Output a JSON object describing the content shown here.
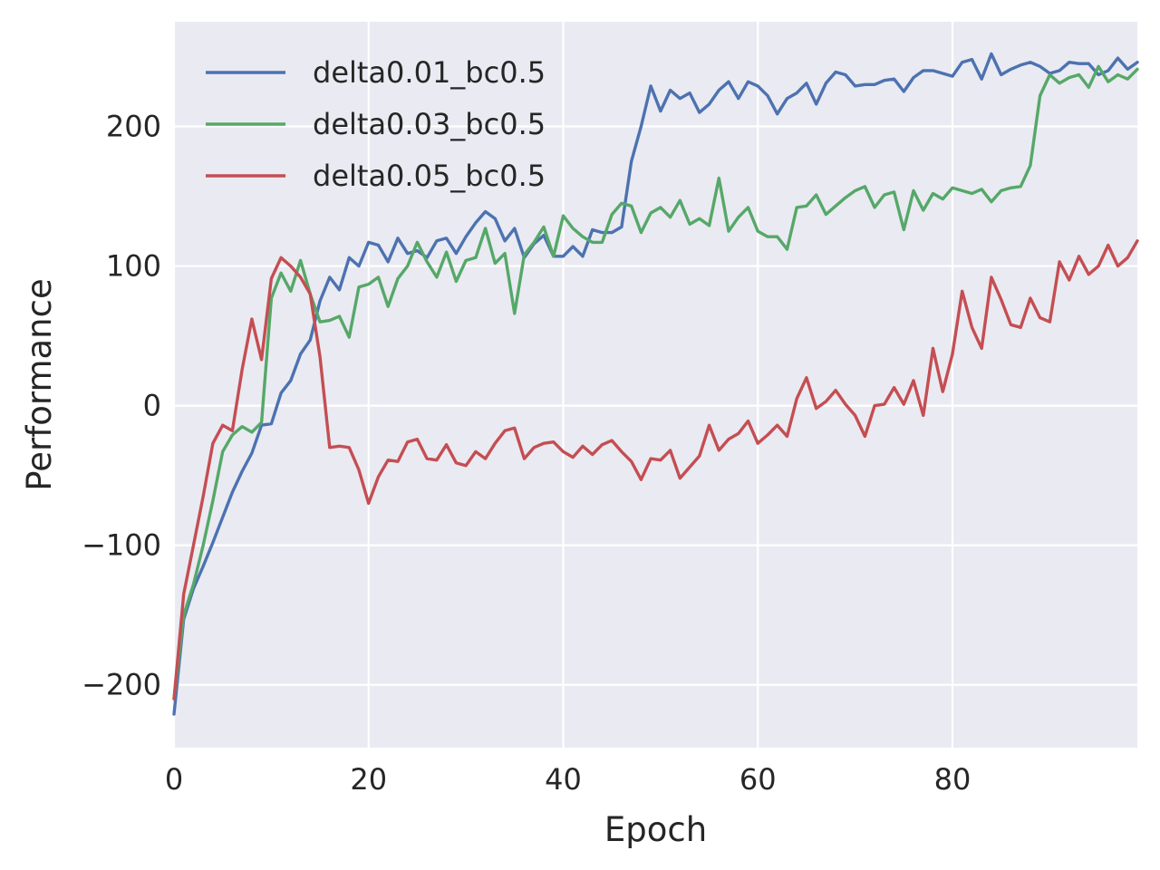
{
  "chart_data": {
    "type": "line",
    "title": "",
    "xlabel": "Epoch",
    "ylabel": "Performance",
    "xlim": [
      0,
      99
    ],
    "ylim": [
      -245,
      275
    ],
    "xticks": [
      0,
      20,
      40,
      60,
      80
    ],
    "xtick_labels": [
      "0",
      "20",
      "40",
      "60",
      "80"
    ],
    "yticks": [
      -200,
      -100,
      0,
      100,
      200
    ],
    "ytick_labels": [
      "−200",
      "−100",
      "0",
      "100",
      "200"
    ],
    "grid": true,
    "legend_position": "top-left",
    "background": "#eaeaf2",
    "x": [
      0,
      1,
      2,
      3,
      4,
      5,
      6,
      7,
      8,
      9,
      10,
      11,
      12,
      13,
      14,
      15,
      16,
      17,
      18,
      19,
      20,
      21,
      22,
      23,
      24,
      25,
      26,
      27,
      28,
      29,
      30,
      31,
      32,
      33,
      34,
      35,
      36,
      37,
      38,
      39,
      40,
      41,
      42,
      43,
      44,
      45,
      46,
      47,
      48,
      49,
      50,
      51,
      52,
      53,
      54,
      55,
      56,
      57,
      58,
      59,
      60,
      61,
      62,
      63,
      64,
      65,
      66,
      67,
      68,
      69,
      70,
      71,
      72,
      73,
      74,
      75,
      76,
      77,
      78,
      79,
      80,
      81,
      82,
      83,
      84,
      85,
      86,
      87,
      88,
      89,
      90,
      91,
      92,
      93,
      94,
      95,
      96,
      97,
      98,
      99
    ],
    "series": [
      {
        "name": "delta0.01_bc0.5",
        "color": "#4c72b0",
        "values": [
          -221,
          -153,
          -131,
          -115,
          -98,
          -80,
          -62,
          -47,
          -34,
          -14,
          -13,
          9,
          18,
          37,
          47,
          75,
          92,
          83,
          106,
          100,
          117,
          115,
          103,
          120,
          109,
          111,
          106,
          118,
          120,
          109,
          121,
          131,
          139,
          134,
          118,
          127,
          106,
          116,
          122,
          107,
          107,
          114,
          107,
          126,
          124,
          124,
          128,
          175,
          200,
          229,
          211,
          226,
          220,
          224,
          210,
          216,
          226,
          232,
          220,
          232,
          229,
          222,
          209,
          220,
          224,
          231,
          216,
          231,
          239,
          237,
          229,
          230,
          230,
          233,
          234,
          225,
          235,
          240,
          240,
          238,
          236,
          246,
          248,
          234,
          252,
          237,
          241,
          244,
          246,
          243,
          238,
          240,
          246,
          245,
          245,
          237,
          240,
          249,
          241,
          246
        ]
      },
      {
        "name": "delta0.03_bc0.5",
        "color": "#55a868",
        "values": [
          -210,
          -150,
          -128,
          -100,
          -68,
          -33,
          -21,
          -15,
          -19,
          -12,
          77,
          95,
          82,
          104,
          80,
          60,
          61,
          64,
          49,
          85,
          87,
          92,
          71,
          91,
          100,
          117,
          103,
          92,
          110,
          89,
          104,
          106,
          127,
          102,
          109,
          66,
          108,
          117,
          128,
          107,
          136,
          127,
          121,
          117,
          117,
          137,
          145,
          143,
          124,
          138,
          142,
          135,
          147,
          130,
          134,
          129,
          163,
          125,
          135,
          142,
          125,
          121,
          121,
          112,
          142,
          143,
          151,
          137,
          143,
          149,
          154,
          157,
          142,
          151,
          153,
          126,
          154,
          140,
          152,
          148,
          156,
          154,
          152,
          155,
          146,
          154,
          156,
          157,
          172,
          222,
          237,
          231,
          235,
          237,
          228,
          243,
          232,
          237,
          234,
          241
        ]
      },
      {
        "name": "delta0.05_bc0.5",
        "color": "#c44e52",
        "values": [
          -210,
          -135,
          -100,
          -65,
          -27,
          -14,
          -18,
          26,
          62,
          33,
          91,
          106,
          100,
          92,
          80,
          35,
          -30,
          -29,
          -30,
          -46,
          -70,
          -51,
          -39,
          -40,
          -26,
          -24,
          -38,
          -39,
          -28,
          -41,
          -43,
          -33,
          -38,
          -27,
          -18,
          -16,
          -38,
          -30,
          -27,
          -26,
          -33,
          -37,
          -29,
          -35,
          -28,
          -25,
          -33,
          -40,
          -53,
          -38,
          -39,
          -32,
          -52,
          -44,
          -36,
          -14,
          -32,
          -24,
          -20,
          -11,
          -27,
          -21,
          -14,
          -22,
          5,
          20,
          -2,
          3,
          11,
          1,
          -7,
          -22,
          0,
          1,
          13,
          1,
          18,
          -7,
          41,
          10,
          37,
          82,
          56,
          41,
          92,
          76,
          58,
          56,
          77,
          63,
          60,
          103,
          90,
          107,
          94,
          100,
          115,
          100,
          106,
          118
        ]
      }
    ]
  }
}
